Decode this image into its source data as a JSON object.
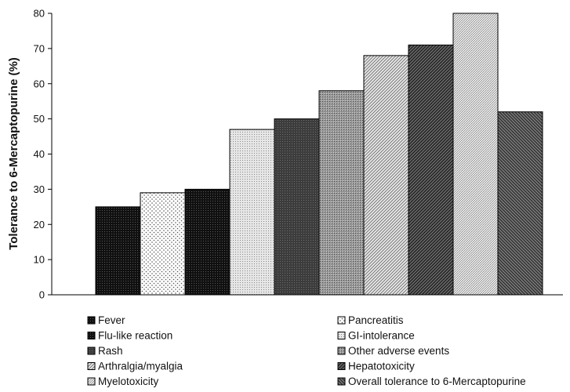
{
  "chart_data": {
    "type": "bar",
    "title": "",
    "xlabel": "",
    "ylabel": "Tolerance to 6-Mercaptopurine (%)",
    "ylim": [
      0,
      80
    ],
    "yticks": [
      "0",
      "10",
      "20",
      "30",
      "40",
      "50",
      "60",
      "70",
      "80"
    ],
    "grid": false,
    "legend_position": "bottom",
    "series": [
      {
        "name": "Fever",
        "value": 25,
        "pattern": "dense-dots-dark"
      },
      {
        "name": "Pancreatitis",
        "value": 29,
        "pattern": "light-dots"
      },
      {
        "name": "Flu-like reaction",
        "value": 30,
        "pattern": "dense-dots-dark"
      },
      {
        "name": "GI-intolerance",
        "value": 47,
        "pattern": "fine-light"
      },
      {
        "name": "Rash",
        "value": 50,
        "pattern": "dark-grid"
      },
      {
        "name": "Other adverse events",
        "value": 58,
        "pattern": "mid-grid"
      },
      {
        "name": "Arthralgia/myalgia",
        "value": 68,
        "pattern": "light-diagonal"
      },
      {
        "name": "Hepatotoxicity",
        "value": 71,
        "pattern": "dark-diagonal"
      },
      {
        "name": "Myelotoxicity",
        "value": 80,
        "pattern": "light-diagonal-fine"
      },
      {
        "name": "Overall tolerance to 6-Mercaptopurine",
        "value": 52,
        "pattern": "dark-backdiagonal"
      }
    ],
    "legend_left": [
      "Fever",
      "Flu-like reaction",
      "Rash",
      "Arthralgia/myalgia",
      "Myelotoxicity"
    ],
    "legend_right": [
      "Pancreatitis",
      "GI-intolerance",
      "Other adverse events",
      "Hepatotoxicity",
      "Overall tolerance to 6-Mercaptopurine"
    ]
  }
}
